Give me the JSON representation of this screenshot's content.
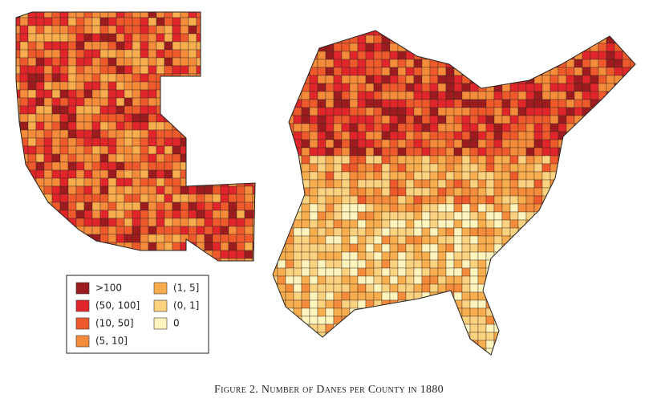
{
  "legend": {
    "items": [
      {
        "label": ">100",
        "color": "#9c1b1f"
      },
      {
        "label": "(50, 100]",
        "color": "#e0262b"
      },
      {
        "label": "(10, 50]",
        "color": "#ee5a2c"
      },
      {
        "label": "(5, 10]",
        "color": "#f58c3b"
      },
      {
        "label": "(1, 5]",
        "color": "#f8ae4f"
      },
      {
        "label": "(0, 1]",
        "color": "#fbd27f"
      },
      {
        "label": "0",
        "color": "#fdf5bd"
      }
    ]
  },
  "caption": "Figure 2. Number of Danes per County in 1880"
}
